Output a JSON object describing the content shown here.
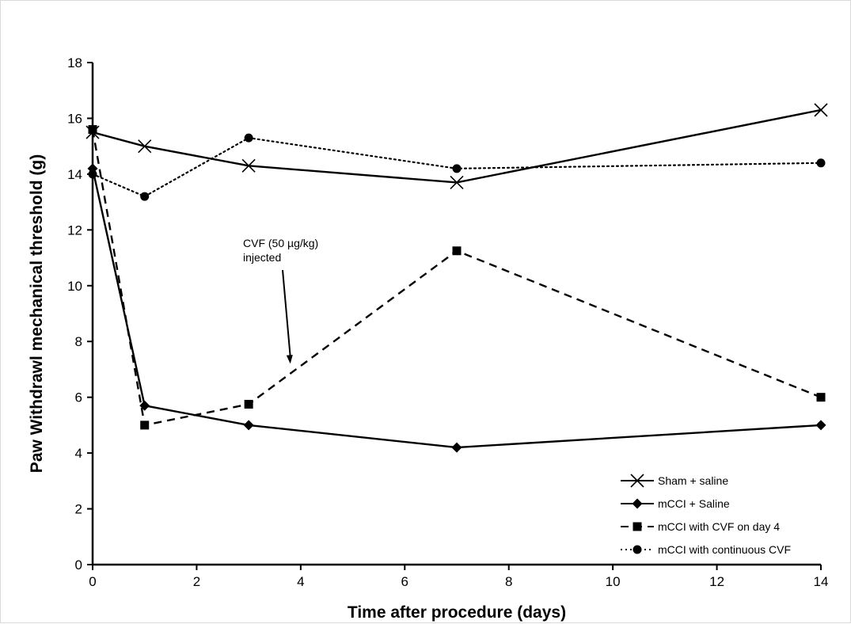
{
  "chart_data": {
    "type": "line",
    "xlabel": "Time after procedure (days)",
    "ylabel": "Paw Withdrawl mechanical threshold (g)",
    "xlim": [
      0,
      14
    ],
    "ylim": [
      0,
      18
    ],
    "xticks": [
      0,
      2,
      4,
      6,
      8,
      10,
      12,
      14
    ],
    "yticks": [
      0,
      2,
      4,
      6,
      8,
      10,
      12,
      14,
      16,
      18
    ],
    "grid": false,
    "legend_position": "bottom-right",
    "series": [
      {
        "name": "Sham + saline",
        "marker": "x",
        "dash": "solid",
        "x": [
          0,
          1,
          3,
          7,
          14
        ],
        "y": [
          15.5,
          15.0,
          14.3,
          13.7,
          16.3
        ]
      },
      {
        "name": "mCCI + Saline",
        "marker": "diamond",
        "dash": "solid",
        "x": [
          0,
          1,
          3,
          7,
          14
        ],
        "y": [
          14.2,
          5.7,
          5.0,
          4.2,
          5.0
        ]
      },
      {
        "name": "mCCI with CVF on day 4",
        "marker": "square",
        "dash": "dashed",
        "x": [
          0,
          1,
          3,
          7,
          14
        ],
        "y": [
          15.6,
          5.0,
          5.75,
          11.25,
          6.0
        ]
      },
      {
        "name": "mCCI with continuous CVF",
        "marker": "circle",
        "dash": "dotted",
        "x": [
          0,
          1,
          3,
          7,
          14
        ],
        "y": [
          14.0,
          13.2,
          15.3,
          14.2,
          14.4
        ]
      }
    ],
    "annotations": [
      {
        "lines": [
          "CVF (50 µg/kg)",
          "injected"
        ],
        "arrow_to": {
          "x": 3.8,
          "y": 7.2
        }
      }
    ]
  }
}
